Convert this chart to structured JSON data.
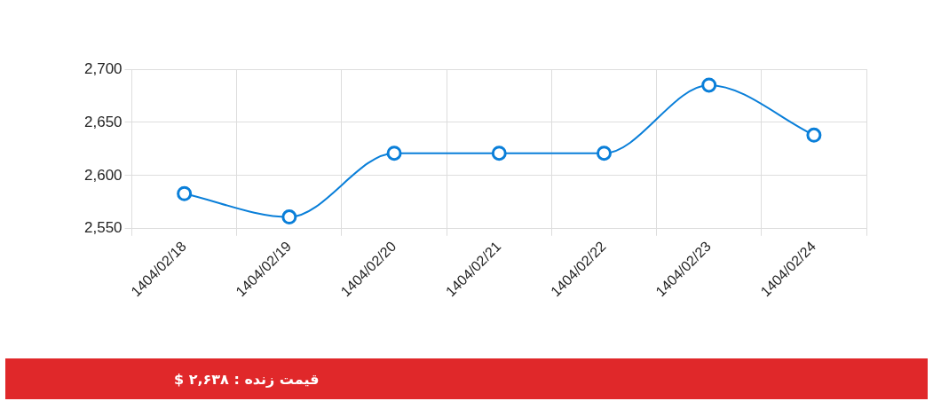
{
  "chart_data": {
    "type": "line",
    "categories": [
      "1404/02/18",
      "1404/02/19",
      "1404/02/20",
      "1404/02/21",
      "1404/02/22",
      "1404/02/23",
      "1404/02/24"
    ],
    "series": [
      {
        "color": "#0a7fd9",
        "values": [
          2583,
          2561,
          2621,
          2621,
          2621,
          2685,
          2638
        ]
      }
    ],
    "ylim": [
      2550,
      2700
    ],
    "yticks": [
      {
        "value": 2550,
        "label": "2,550"
      },
      {
        "value": 2600,
        "label": "2,600"
      },
      {
        "value": 2650,
        "label": "2,650"
      },
      {
        "value": 2700,
        "label": "2,700"
      }
    ],
    "grid": true,
    "legend": false,
    "marker": "circle",
    "annotations": [
      "قیمت زنده : ۲,۶۳۸ $"
    ]
  }
}
